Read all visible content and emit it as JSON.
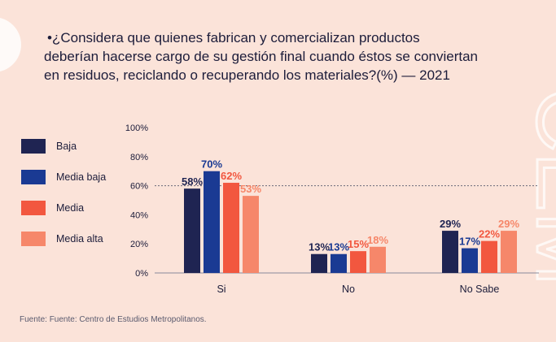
{
  "chart_data": {
    "type": "bar",
    "title_lines": [
      "•¿Considera que quienes fabrican y comercializan productos",
      "deberían hacerse cargo de su gestión final cuando éstos se conviertan",
      "en residuos, reciclando o recuperando los materiales?(%) — 2021"
    ],
    "categories": [
      "Si",
      "No",
      "No Sabe"
    ],
    "series": [
      {
        "name": "Baja",
        "values": [
          58,
          13,
          29
        ],
        "color": "#1f2452",
        "label_color": "#1f2452"
      },
      {
        "name": "Media baja",
        "values": [
          70,
          13,
          17
        ],
        "color": "#1a3a93",
        "label_color": "#1a3a93"
      },
      {
        "name": "Media",
        "values": [
          62,
          15,
          22
        ],
        "color": "#f2573f",
        "label_color": "#f2573f"
      },
      {
        "name": "Media alta",
        "values": [
          53,
          18,
          29
        ],
        "color": "#f6876a",
        "label_color": "#f6876a"
      }
    ],
    "y_ticks": [
      "0%",
      "20%",
      "40%",
      "60%",
      "80%",
      "100%"
    ],
    "ylim": [
      0,
      100
    ],
    "reference_line": 60,
    "value_suffix": "%",
    "legend_position": "left",
    "source": "Fuente: Fuente: Centro de Estudios Metropolitanos."
  },
  "colors": {
    "background": "#fbe3d9",
    "text": "#1c1c3a",
    "watermark": "#ffffff"
  },
  "watermark_text": "CEM"
}
